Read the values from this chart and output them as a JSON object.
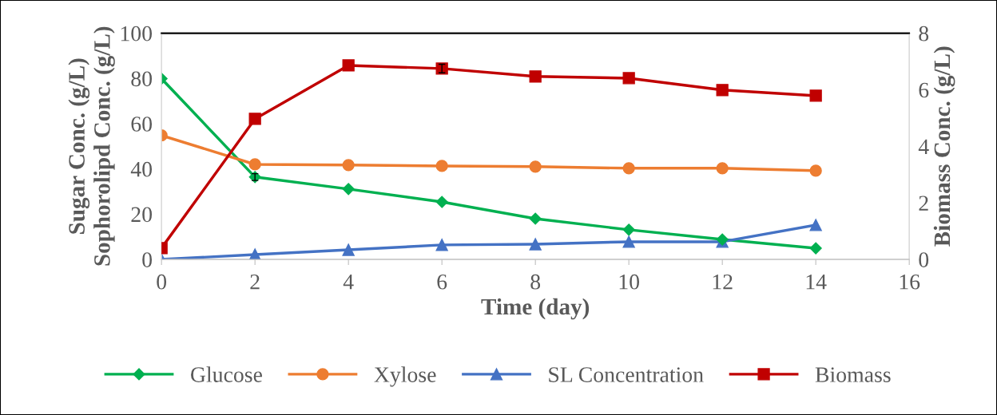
{
  "chart_data": {
    "type": "line",
    "xlabel": "Time (day)",
    "ylabel": "Sugar Conc. (g/L)\nSophorolipd Conc. (g/L)",
    "y2label": "Biomass Conc. (g/L)",
    "x": [
      0,
      2,
      4,
      6,
      8,
      10,
      12,
      14
    ],
    "xlim": [
      0,
      16
    ],
    "xticks": [
      0,
      2,
      4,
      6,
      8,
      10,
      12,
      14,
      16
    ],
    "ylim": [
      0,
      100
    ],
    "yticks": [
      0,
      20,
      40,
      60,
      80,
      100
    ],
    "y2lim": [
      0,
      8
    ],
    "y2ticks": [
      0,
      2,
      4,
      6,
      8
    ],
    "grid": false,
    "legend": "bottom",
    "line_style": "solid",
    "series": [
      {
        "name": "Glucose",
        "color": "#00b050",
        "marker": "diamond",
        "values": [
          79.9,
          36.4,
          31.1,
          25.4,
          18.0,
          13.1,
          8.8,
          4.9
        ],
        "errors": [
          null,
          1.5,
          null,
          null,
          null,
          null,
          null,
          null
        ]
      },
      {
        "name": "Xylose",
        "color": "#ed7d31",
        "marker": "circle",
        "values": [
          54.8,
          42.0,
          41.7,
          41.3,
          41.0,
          40.3,
          40.3,
          39.2
        ]
      },
      {
        "name": "SL Concentration",
        "color": "#4472c4",
        "marker": "triangle",
        "values": [
          0.0,
          2.1,
          4.2,
          6.4,
          6.7,
          7.8,
          7.8,
          15.2
        ]
      },
      {
        "name": "Biomass",
        "color": "#c00000",
        "marker": "square",
        "axis": "y2",
        "values": [
          0.4,
          4.97,
          6.86,
          6.75,
          6.47,
          6.41,
          5.99,
          5.79
        ],
        "errors": [
          null,
          null,
          null,
          0.15,
          null,
          null,
          null,
          null
        ]
      }
    ]
  }
}
